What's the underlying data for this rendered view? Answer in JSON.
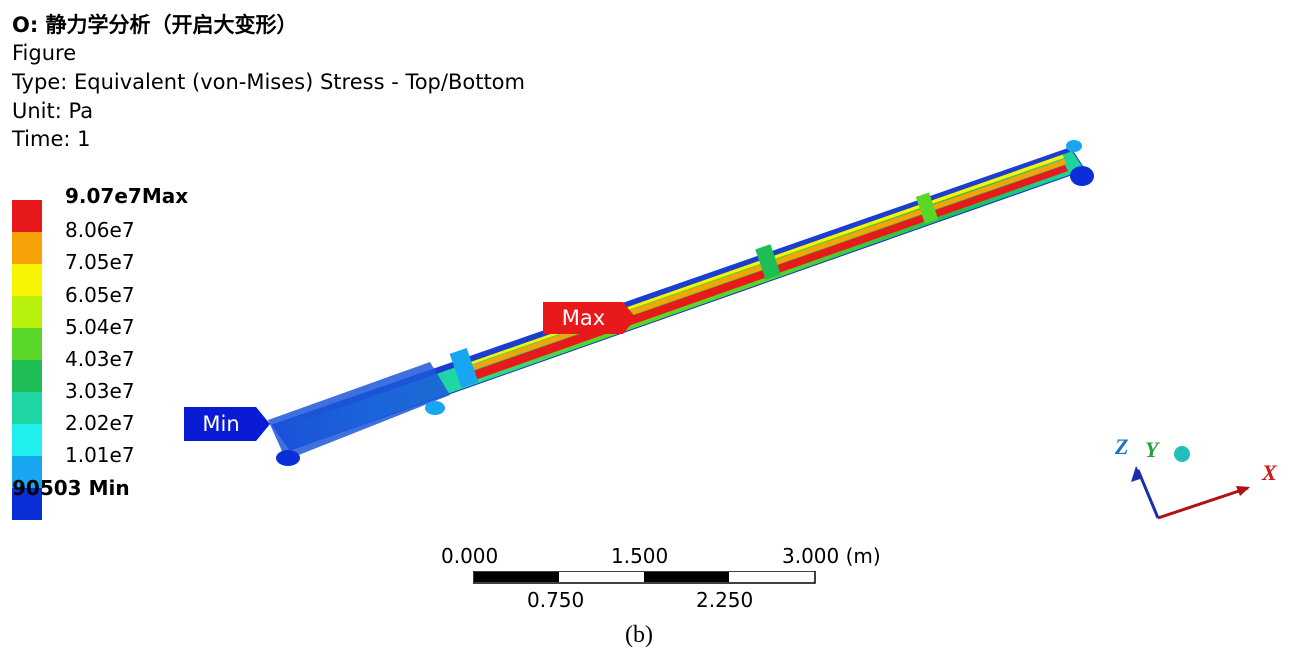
{
  "header": {
    "title": "O: 静力学分析（开启大变形）",
    "subtitle": "Figure",
    "type_line": "Type: Equivalent (von-Mises) Stress - Top/Bottom",
    "unit_line": "Unit: Pa",
    "time_line": "Time: 1"
  },
  "legend": {
    "max_label": "Max",
    "min_label": "Min",
    "levels": [
      "9.07e7",
      "8.06e7",
      "7.05e7",
      "6.05e7",
      "5.04e7",
      "4.03e7",
      "3.03e7",
      "2.02e7",
      "1.01e7",
      "90503"
    ],
    "colors": [
      "#e8191b",
      "#f8a20a",
      "#f8f300",
      "#b7f10c",
      "#5ad626",
      "#1fbd55",
      "#1fd7a5",
      "#1ff0ee",
      "#19a6f0",
      "#0a2fd9"
    ]
  },
  "probes": {
    "max_label": "Max",
    "min_label": "Min"
  },
  "scale_bar": {
    "top_labels": [
      "0.000",
      "1.500",
      "3.000 (m)"
    ],
    "bottom_labels": [
      "0.750",
      "2.250"
    ]
  },
  "triad": {
    "x": "X",
    "y": "Y",
    "z": "Z"
  },
  "caption": "(b)"
}
